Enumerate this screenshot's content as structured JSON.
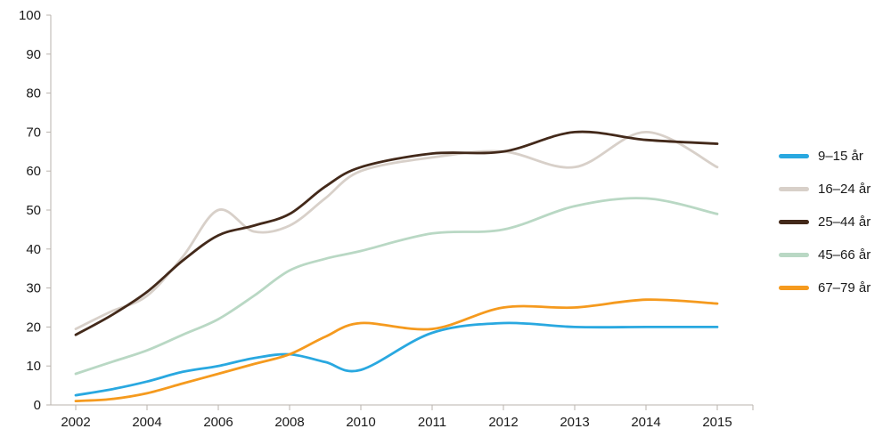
{
  "chart_data": {
    "type": "line",
    "title": "",
    "xlabel": "",
    "ylabel": "",
    "ylim": [
      0,
      100
    ],
    "y_ticks": [
      0,
      10,
      20,
      30,
      40,
      50,
      60,
      70,
      80,
      90,
      100
    ],
    "x_tick_labels": [
      "2002",
      "2004",
      "2006",
      "2008",
      "2010",
      "2011",
      "2012",
      "2013",
      "2014",
      "2015"
    ],
    "x_tick_positions": [
      0,
      1,
      2,
      3,
      4,
      5,
      6,
      7,
      8,
      9
    ],
    "x_years": [
      2002,
      2003,
      2004,
      2005,
      2006,
      2007,
      2008,
      2009,
      2010,
      2011,
      2012,
      2013,
      2014,
      2015
    ],
    "x_positions": [
      0,
      0.5,
      1,
      1.5,
      2,
      2.5,
      3,
      3.5,
      4,
      5,
      6,
      7,
      8,
      9
    ],
    "grid": false,
    "legend_position": "right",
    "axis_color": "#b9b3ad",
    "series": [
      {
        "name": "9–15 år",
        "color": "#29a8e0",
        "values": [
          2.5,
          4,
          6,
          8.5,
          10,
          12,
          13,
          11,
          9,
          18.5,
          21,
          20,
          20,
          20
        ]
      },
      {
        "name": "16–24 år",
        "color": "#d8d0c9",
        "values": [
          19.5,
          24,
          28,
          38,
          50,
          44.5,
          46,
          53,
          60,
          63.5,
          65,
          61,
          70,
          61
        ]
      },
      {
        "name": "25–44 år",
        "color": "#43291a",
        "values": [
          18,
          23,
          29,
          37,
          43.5,
          46,
          49,
          56,
          61,
          64.5,
          65,
          70,
          68,
          67
        ]
      },
      {
        "name": "45–66 år",
        "color": "#b9d8c4",
        "values": [
          8,
          11,
          14,
          18,
          22,
          28,
          34.5,
          37.5,
          39.5,
          44,
          45,
          51,
          53,
          49
        ]
      },
      {
        "name": "67–79 år",
        "color": "#f59a1e",
        "values": [
          1,
          1.5,
          3,
          5.5,
          8,
          10.5,
          13,
          17.5,
          21,
          19.5,
          25,
          25,
          27,
          26
        ]
      }
    ]
  }
}
